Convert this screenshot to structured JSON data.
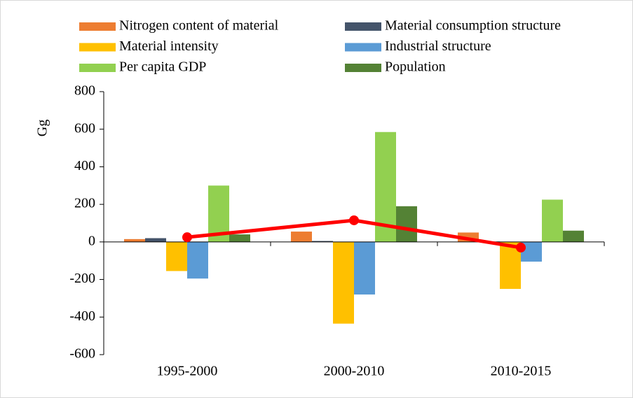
{
  "chart_data": {
    "type": "bar",
    "y_label": "Gg",
    "categories": [
      "1995-2000",
      "2000-2010",
      "2010-2015"
    ],
    "series": [
      {
        "name": "Nitrogen content of material",
        "color": "#ed7d31",
        "values": [
          15,
          55,
          50
        ]
      },
      {
        "name": "Material consumption structure",
        "color": "#44546a",
        "values": [
          20,
          5,
          2
        ]
      },
      {
        "name": "Material intensity",
        "color": "#ffc000",
        "values": [
          -155,
          -435,
          -250
        ]
      },
      {
        "name": "Industrial structure",
        "color": "#5b9bd5",
        "values": [
          -195,
          -280,
          -105
        ]
      },
      {
        "name": "Per capita GDP",
        "color": "#92d050",
        "values": [
          300,
          585,
          225
        ]
      },
      {
        "name": "Population",
        "color": "#548235",
        "values": [
          40,
          190,
          60
        ]
      },
      {
        "type": "line",
        "color": "#ff0000",
        "values": [
          25,
          115,
          -30
        ]
      }
    ],
    "ylim": [
      -600,
      800
    ],
    "yticks": [
      -600,
      -400,
      -200,
      0,
      200,
      400,
      600,
      800
    ]
  }
}
